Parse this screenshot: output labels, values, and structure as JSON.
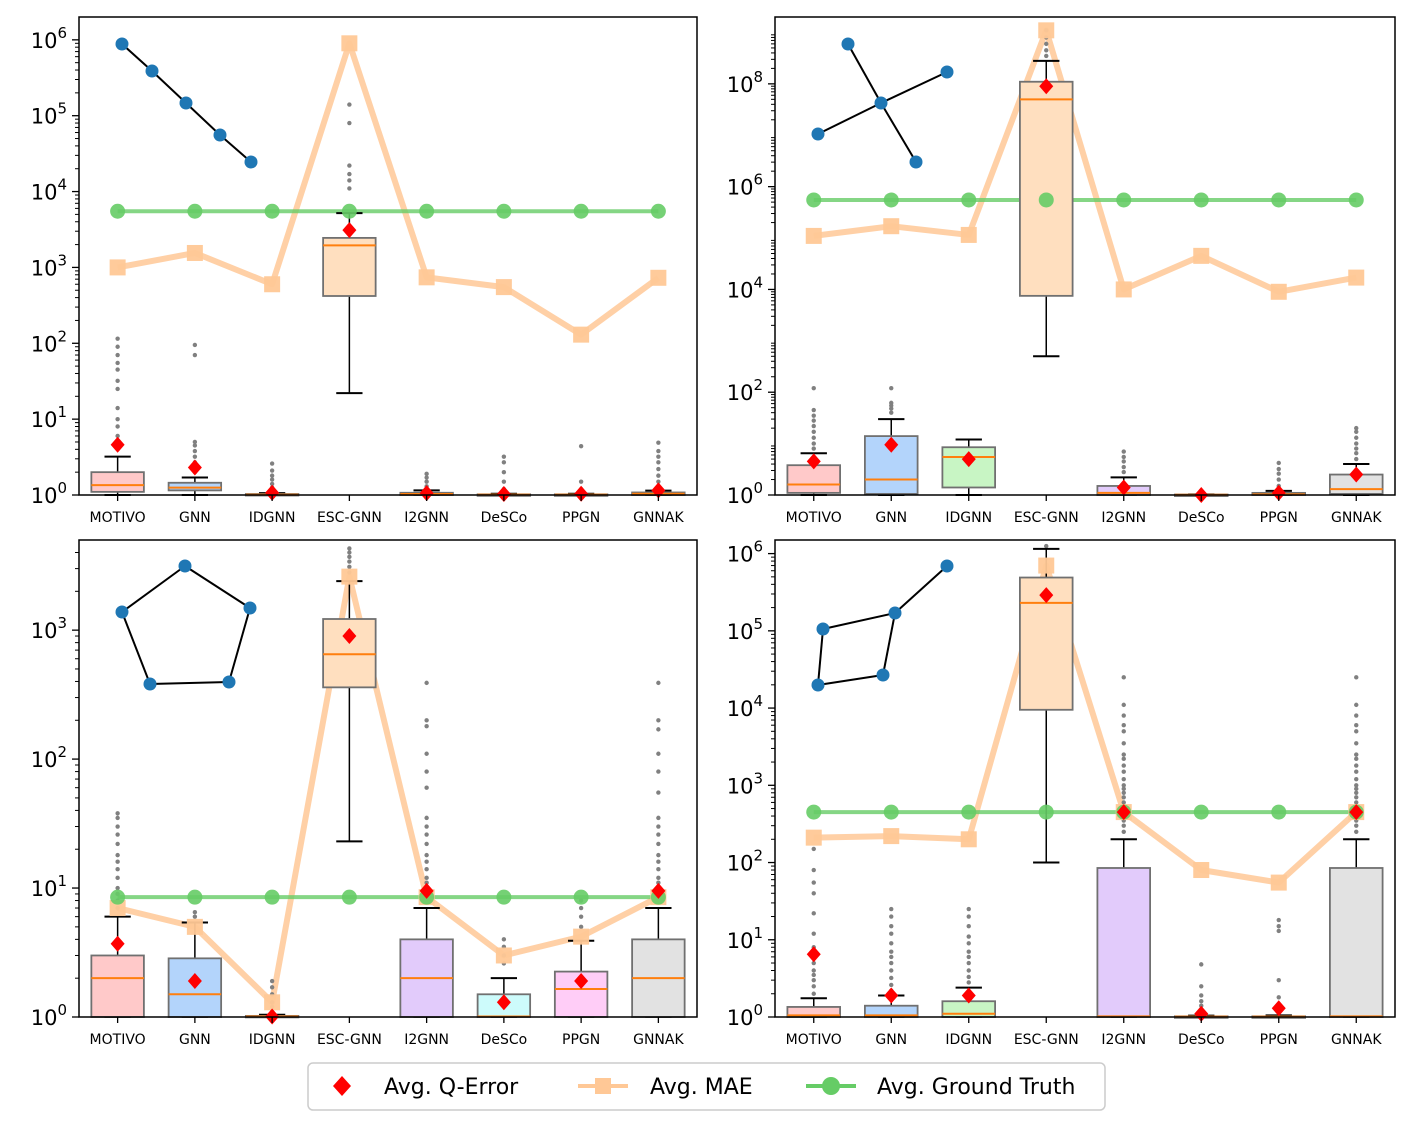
{
  "legend": [
    {
      "key": "q_error",
      "label": "Avg. Q-Error",
      "color": "#ff0000"
    },
    {
      "key": "mae",
      "label": "Avg. MAE",
      "color": "#ffc896"
    },
    {
      "key": "ground_truth",
      "label": "Avg. Ground Truth",
      "color": "#66cc66"
    }
  ],
  "colors": {
    "box_fills": [
      "#ffc9c9",
      "#b3d4fb",
      "#c8f5c4",
      "#ffdfbf",
      "#e2cbfb",
      "#cdfbfb",
      "#ffcdf7",
      "#e2e2e2"
    ],
    "median": "#ff7f0e",
    "outlier": "#808080",
    "motif": "#1f77b4"
  },
  "chart_data": [
    {
      "type": "box",
      "scale": "log",
      "motif": "path-5",
      "categories": [
        "MOTIVO",
        "GNN",
        "IDGNN",
        "ESC-GNN",
        "I2GNN",
        "DeSCo",
        "PPGN",
        "GNNAK"
      ],
      "ylim": [
        1,
        2000000
      ],
      "yticks": [
        {
          "v": 1,
          "b": "10",
          "e": "0"
        },
        {
          "v": 10,
          "b": "10",
          "e": "1"
        },
        {
          "v": 100,
          "b": "10",
          "e": "2"
        },
        {
          "v": 1000,
          "b": "10",
          "e": "3"
        },
        {
          "v": 10000,
          "b": "10",
          "e": "4"
        },
        {
          "v": 100000,
          "b": "10",
          "e": "5"
        },
        {
          "v": 1000000,
          "b": "10",
          "e": "6"
        }
      ],
      "boxes": [
        {
          "q1": 1.1,
          "med": 1.35,
          "q3": 2.0,
          "whislo": 1.0,
          "whishi": 3.2,
          "outliers": [
            4,
            5,
            6,
            8,
            10,
            14,
            25,
            32,
            45,
            55,
            70,
            90,
            115
          ]
        },
        {
          "q1": 1.15,
          "med": 1.25,
          "q3": 1.45,
          "whislo": 1.0,
          "whishi": 1.7,
          "outliers": [
            2,
            2.3,
            2.7,
            3.2,
            3.8,
            4.5,
            5,
            70,
            95
          ]
        },
        {
          "q1": 1.0,
          "med": 1.01,
          "q3": 1.03,
          "whislo": 1.0,
          "whishi": 1.06,
          "outliers": [
            1.1,
            1.25,
            1.4,
            1.6,
            1.8,
            2.1,
            2.6
          ]
        },
        {
          "q1": 420,
          "med": 1950,
          "q3": 2450,
          "whislo": 22,
          "whishi": 5200,
          "outliers": [
            11000,
            14000,
            17000,
            22000,
            80000,
            140000
          ]
        },
        {
          "q1": 1.0,
          "med": 1.03,
          "q3": 1.07,
          "whislo": 1.0,
          "whishi": 1.15,
          "outliers": [
            1.3,
            1.5,
            1.7,
            1.9
          ]
        },
        {
          "q1": 1.0,
          "med": 1.01,
          "q3": 1.02,
          "whislo": 1.0,
          "whishi": 1.04,
          "outliers": [
            1.2,
            1.5,
            2.0,
            2.7,
            3.2
          ]
        },
        {
          "q1": 1.0,
          "med": 1.01,
          "q3": 1.02,
          "whislo": 1.0,
          "whishi": 1.04,
          "outliers": [
            1.2,
            1.5,
            4.4
          ]
        },
        {
          "q1": 1.0,
          "med": 1.04,
          "q3": 1.08,
          "whislo": 1.0,
          "whishi": 1.14,
          "outliers": [
            1.3,
            1.5,
            1.8,
            2.2,
            2.7,
            3.2,
            3.8,
            4.9
          ]
        }
      ],
      "q_error": [
        4.6,
        2.3,
        1.07,
        3100,
        1.06,
        1.03,
        1.04,
        1.15
      ],
      "mae": [
        1000,
        1550,
        600,
        900000,
        740,
        550,
        130,
        730
      ],
      "ground_truth": [
        5500,
        5500,
        5500,
        5500,
        5500,
        5500,
        5500,
        5500
      ]
    },
    {
      "type": "box",
      "scale": "log",
      "motif": "star",
      "categories": [
        "MOTIVO",
        "GNN",
        "IDGNN",
        "ESC-GNN",
        "I2GNN",
        "DeSCo",
        "PPGN",
        "GNNAK"
      ],
      "ylim": [
        1,
        2000000000
      ],
      "yticks": [
        {
          "v": 1,
          "b": "10",
          "e": "0"
        },
        {
          "v": 100,
          "b": "10",
          "e": "2"
        },
        {
          "v": 10000,
          "b": "10",
          "e": "4"
        },
        {
          "v": 1000000,
          "b": "10",
          "e": "6"
        },
        {
          "v": 100000000,
          "b": "10",
          "e": "8"
        }
      ],
      "boxes": [
        {
          "q1": 1.1,
          "med": 1.6,
          "q3": 3.8,
          "whislo": 1.0,
          "whishi": 6.5,
          "outliers": [
            8,
            10,
            13,
            17,
            22,
            28,
            35,
            45,
            120
          ]
        },
        {
          "q1": 1.05,
          "med": 2.0,
          "q3": 14,
          "whislo": 1.0,
          "whishi": 30,
          "outliers": [
            40,
            48,
            55,
            62,
            120
          ]
        },
        {
          "q1": 1.4,
          "med": 5.5,
          "q3": 8.5,
          "whislo": 1.0,
          "whishi": 12,
          "outliers": []
        },
        {
          "q1": 7500,
          "med": 50000000,
          "q3": 110000000,
          "whislo": 500,
          "whishi": 280000000,
          "outliers": [
            350000000,
            450000000,
            600000000,
            800000000,
            1100000000
          ]
        },
        {
          "q1": 1.0,
          "med": 1.1,
          "q3": 1.5,
          "whislo": 1.0,
          "whishi": 2.2,
          "outliers": [
            2.8,
            3.5,
            4.5,
            5.5,
            7
          ]
        },
        {
          "q1": 1.0,
          "med": 1.01,
          "q3": 1.02,
          "whislo": 1.0,
          "whishi": 1.03,
          "outliers": []
        },
        {
          "q1": 1.0,
          "med": 1.03,
          "q3": 1.1,
          "whislo": 1.0,
          "whishi": 1.2,
          "outliers": [
            1.5,
            2,
            2.6,
            3.2,
            4.2
          ]
        },
        {
          "q1": 1.05,
          "med": 1.3,
          "q3": 2.5,
          "whislo": 1.0,
          "whishi": 4.0,
          "outliers": [
            5,
            6.5,
            8,
            10,
            13,
            17,
            20
          ]
        }
      ],
      "q_error": [
        4.5,
        9.5,
        5.0,
        90000000,
        1.4,
        1.0,
        1.1,
        2.5
      ],
      "mae": [
        110000,
        170000,
        115000,
        1100000000,
        10000,
        45000,
        9000,
        17000
      ],
      "ground_truth": [
        550000,
        550000,
        550000,
        550000,
        550000,
        550000,
        550000,
        550000
      ]
    },
    {
      "type": "box",
      "scale": "log",
      "motif": "cycle-5",
      "categories": [
        "MOTIVO",
        "GNN",
        "IDGNN",
        "ESC-GNN",
        "I2GNN",
        "DeSCo",
        "PPGN",
        "GNNAK"
      ],
      "ylim": [
        1,
        5000
      ],
      "yticks": [
        {
          "v": 1,
          "b": "10",
          "e": "0"
        },
        {
          "v": 10,
          "b": "10",
          "e": "1"
        },
        {
          "v": 100,
          "b": "10",
          "e": "2"
        },
        {
          "v": 1000,
          "b": "10",
          "e": "3"
        }
      ],
      "boxes": [
        {
          "q1": 1.0,
          "med": 2.0,
          "q3": 3.0,
          "whislo": 1.0,
          "whishi": 6.0,
          "outliers": [
            7,
            8,
            9,
            10,
            12,
            14,
            16,
            18,
            22,
            26,
            30,
            35,
            38
          ]
        },
        {
          "q1": 1.0,
          "med": 1.5,
          "q3": 2.85,
          "whislo": 1.0,
          "whishi": 5.4,
          "outliers": [
            6,
            6.5
          ]
        },
        {
          "q1": 1.0,
          "med": 1.01,
          "q3": 1.02,
          "whislo": 1.0,
          "whishi": 1.04,
          "outliers": [
            1.1,
            1.2,
            1.3,
            1.5,
            1.7,
            1.9
          ]
        },
        {
          "q1": 360,
          "med": 650,
          "q3": 1220,
          "whislo": 23,
          "whishi": 2400,
          "outliers": [
            2800,
            3100,
            3400,
            3700,
            4000,
            4300
          ]
        },
        {
          "q1": 1.0,
          "med": 2.0,
          "q3": 4.0,
          "whislo": 1.0,
          "whishi": 7.0,
          "outliers": [
            8,
            9,
            10,
            11,
            12,
            14,
            16,
            18,
            22,
            26,
            30,
            35,
            60,
            80,
            110,
            180,
            200,
            390
          ]
        },
        {
          "q1": 1.0,
          "med": 1.01,
          "q3": 1.5,
          "whislo": 1.0,
          "whishi": 2.0,
          "outliers": [
            2.6,
            3.0,
            3.5,
            4.0
          ]
        },
        {
          "q1": 1.0,
          "med": 1.65,
          "q3": 2.25,
          "whislo": 1.0,
          "whishi": 3.9,
          "outliers": [
            5,
            6,
            7,
            8
          ]
        },
        {
          "q1": 1.0,
          "med": 2.0,
          "q3": 4.0,
          "whislo": 1.0,
          "whishi": 7.0,
          "outliers": [
            8,
            9,
            10,
            11,
            12,
            14,
            16,
            18,
            22,
            26,
            30,
            35,
            55,
            80,
            110,
            170,
            200,
            390
          ]
        }
      ],
      "q_error": [
        3.7,
        1.9,
        1.01,
        900,
        9.5,
        1.3,
        1.9,
        9.5
      ],
      "mae": [
        7.0,
        5.0,
        1.3,
        2600,
        8.5,
        3.0,
        4.2,
        8.5
      ],
      "ground_truth": [
        8.5,
        8.5,
        8.5,
        8.5,
        8.5,
        8.5,
        8.5,
        8.5
      ]
    },
    {
      "type": "box",
      "scale": "log",
      "motif": "tailed-cycle",
      "categories": [
        "MOTIVO",
        "GNN",
        "IDGNN",
        "ESC-GNN",
        "I2GNN",
        "DeSCo",
        "PPGN",
        "GNNAK"
      ],
      "ylim": [
        1,
        1500000
      ],
      "yticks": [
        {
          "v": 1,
          "b": "10",
          "e": "0"
        },
        {
          "v": 10,
          "b": "10",
          "e": "1"
        },
        {
          "v": 100,
          "b": "10",
          "e": "2"
        },
        {
          "v": 1000,
          "b": "10",
          "e": "3"
        },
        {
          "v": 10000,
          "b": "10",
          "e": "4"
        },
        {
          "v": 100000,
          "b": "10",
          "e": "5"
        },
        {
          "v": 1000000,
          "b": "10",
          "e": "6"
        }
      ],
      "boxes": [
        {
          "q1": 1.0,
          "med": 1.05,
          "q3": 1.35,
          "whislo": 1.0,
          "whishi": 1.75,
          "outliers": [
            2,
            2.5,
            3,
            3.5,
            4,
            5,
            6,
            8,
            12,
            22,
            40,
            55,
            80,
            150
          ]
        },
        {
          "q1": 1.0,
          "med": 1.05,
          "q3": 1.4,
          "whislo": 1.0,
          "whishi": 1.9,
          "outliers": [
            2.2,
            2.6,
            3.2,
            4,
            5,
            6,
            7,
            9,
            12,
            15,
            20,
            25
          ]
        },
        {
          "q1": 1.0,
          "med": 1.1,
          "q3": 1.6,
          "whislo": 1.0,
          "whishi": 2.4,
          "outliers": [
            2.8,
            3.3,
            4,
            5,
            6,
            7,
            9,
            11,
            15,
            20,
            25
          ]
        },
        {
          "q1": 9500,
          "med": 230000,
          "q3": 490000,
          "whislo": 100,
          "whishi": 1150000,
          "outliers": [
            1250000
          ]
        },
        {
          "q1": 1.0,
          "med": 1.02,
          "q3": 85,
          "whislo": 1.0,
          "whishi": 200,
          "outliers": [
            250,
            300,
            350,
            400,
            450,
            500,
            600,
            700,
            800,
            900,
            1000,
            1200,
            1500,
            1800,
            2200,
            2500,
            3500,
            5000,
            6000,
            8000,
            11000,
            25000
          ]
        },
        {
          "q1": 1.0,
          "med": 1.01,
          "q3": 1.02,
          "whislo": 1.0,
          "whishi": 1.04,
          "outliers": [
            1.2,
            1.4,
            1.6,
            1.9,
            2.5,
            4.8
          ]
        },
        {
          "q1": 1.0,
          "med": 1.01,
          "q3": 1.02,
          "whislo": 1.0,
          "whishi": 1.05,
          "outliers": [
            1.4,
            1.8,
            3.0,
            13,
            15,
            18
          ]
        },
        {
          "q1": 1.0,
          "med": 1.02,
          "q3": 85,
          "whislo": 1.0,
          "whishi": 200,
          "outliers": [
            250,
            300,
            350,
            400,
            450,
            500,
            600,
            700,
            800,
            900,
            1000,
            1200,
            1500,
            1800,
            2200,
            2500,
            3500,
            5000,
            6000,
            8000,
            11000,
            25000
          ]
        }
      ],
      "q_error": [
        6.5,
        1.9,
        1.9,
        290000,
        450,
        1.1,
        1.3,
        450
      ],
      "mae": [
        210,
        220,
        200,
        700000,
        450,
        80,
        55,
        450
      ],
      "ground_truth": [
        450,
        450,
        450,
        450,
        450,
        450,
        450,
        450
      ]
    }
  ]
}
